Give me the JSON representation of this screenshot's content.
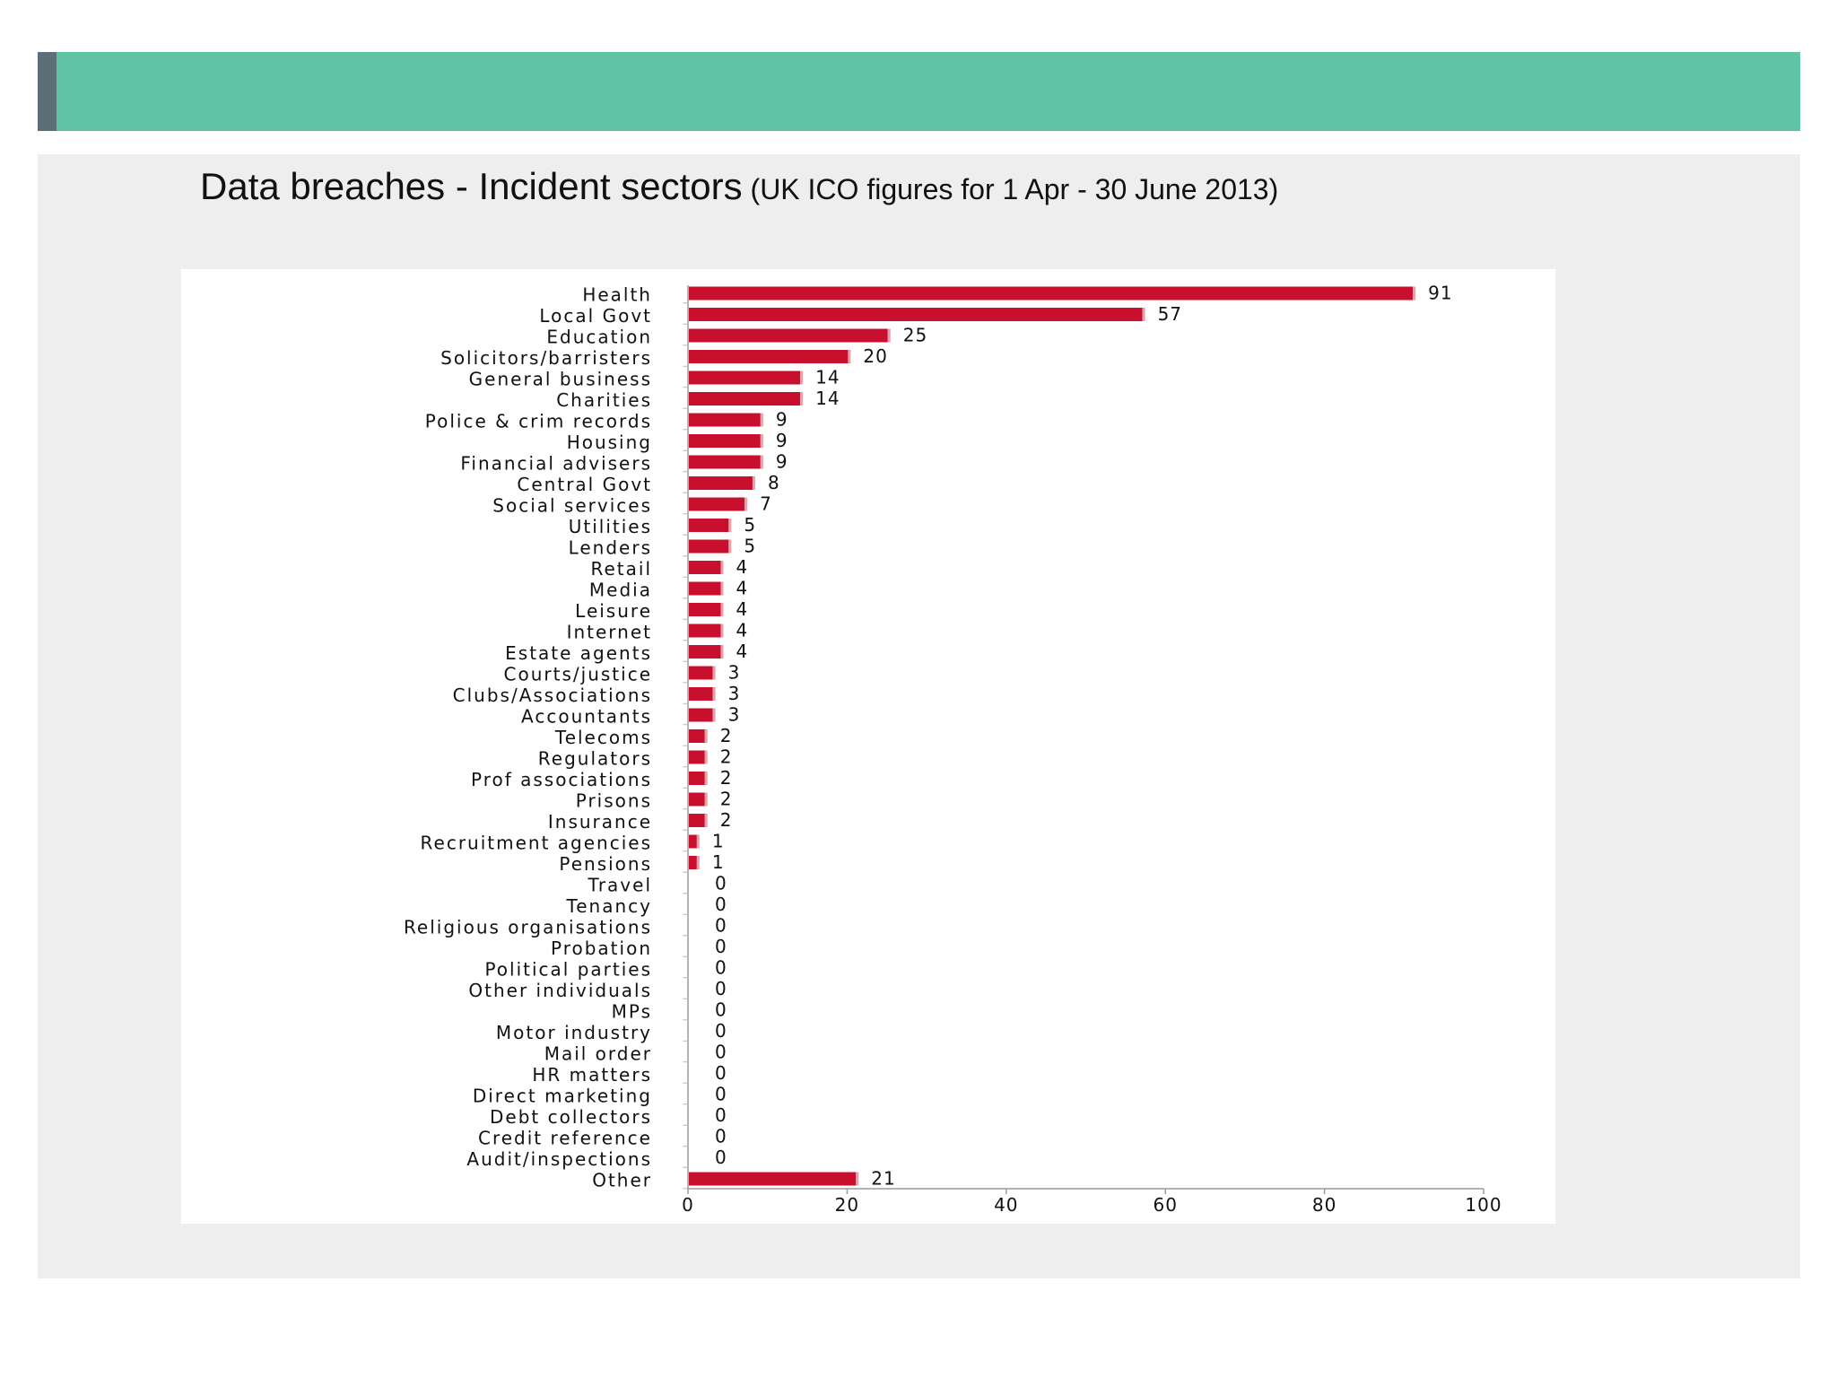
{
  "slide": {
    "title": "Data breaches - Incident sectors",
    "subtitle": "(UK ICO figures for 1 Apr - 30 June 2013)",
    "band_color": "#5fc3a6",
    "accent_color": "#5c6e76",
    "panel_color": "#eeeeef"
  },
  "chart_data": {
    "type": "bar",
    "orientation": "horizontal",
    "title": "",
    "xlabel": "",
    "ylabel": "",
    "xlim": [
      0,
      100
    ],
    "xticks": [
      0,
      20,
      40,
      60,
      80,
      100
    ],
    "grid": false,
    "legend": "none",
    "bar_color": "#c8102e",
    "categories": [
      "Health",
      "Local Govt",
      "Education",
      "Solicitors/barristers",
      "General business",
      "Charities",
      "Police & crim records",
      "Housing",
      "Financial advisers",
      "Central Govt",
      "Social services",
      "Utilities",
      "Lenders",
      "Retail",
      "Media",
      "Leisure",
      "Internet",
      "Estate agents",
      "Courts/justice",
      "Clubs/Associations",
      "Accountants",
      "Telecoms",
      "Regulators",
      "Prof associations",
      "Prisons",
      "Insurance",
      "Recruitment agencies",
      "Pensions",
      "Travel",
      "Tenancy",
      "Religious organisations",
      "Probation",
      "Political parties",
      "Other individuals",
      "MPs",
      "Motor industry",
      "Mail order",
      "HR matters",
      "Direct marketing",
      "Debt collectors",
      "Credit reference",
      "Audit/inspections",
      "Other"
    ],
    "values": [
      91,
      57,
      25,
      20,
      14,
      14,
      9,
      9,
      9,
      8,
      7,
      5,
      5,
      4,
      4,
      4,
      4,
      4,
      3,
      3,
      3,
      2,
      2,
      2,
      2,
      2,
      1,
      1,
      0,
      0,
      0,
      0,
      0,
      0,
      0,
      0,
      0,
      0,
      0,
      0,
      0,
      0,
      21
    ]
  }
}
